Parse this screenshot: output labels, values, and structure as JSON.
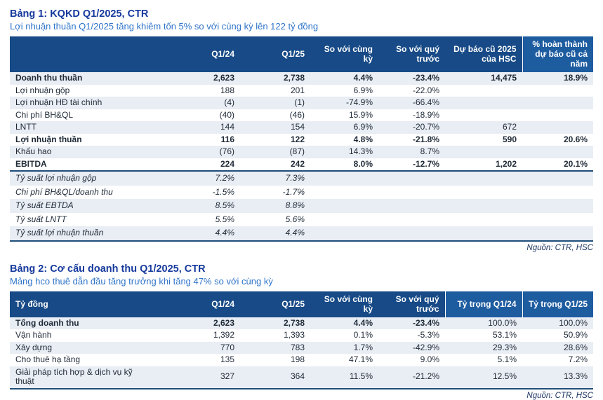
{
  "table1": {
    "title": "Bảng 1: KQKD Q1/2025, CTR",
    "subtitle": "Lợi nhuận thuần Q1/2025 tăng khiêm tốn 5% so với cùng kỳ lên 122 tỷ đồng",
    "source": "Nguồn: CTR, HSC",
    "columns": [
      "",
      "Q1/24",
      "Q1/25",
      "So với cùng kỳ",
      "So với quý trước",
      "Dự báo cũ 2025 của HSC",
      "% hoàn thành dự báo cũ cả năm"
    ],
    "highlight_columns": [
      6
    ],
    "rows": [
      {
        "label": "Doanh thu thuần",
        "values": [
          "2,623",
          "2,738",
          "4.4%",
          "-23.4%",
          "14,475",
          "18.9%"
        ],
        "bold": true
      },
      {
        "label": "Lợi nhuận gộp",
        "values": [
          "188",
          "201",
          "6.9%",
          "-22.0%",
          "",
          ""
        ]
      },
      {
        "label": "Lợi nhuận HĐ tài chính",
        "values": [
          "(4)",
          "(1)",
          "-74.9%",
          "-66.4%",
          "",
          ""
        ]
      },
      {
        "label": "Chi phí BH&QL",
        "values": [
          "(40)",
          "(46)",
          "15.9%",
          "-18.9%",
          "",
          ""
        ]
      },
      {
        "label": "LNTT",
        "values": [
          "144",
          "154",
          "6.9%",
          "-20.7%",
          "672",
          ""
        ]
      },
      {
        "label": "Lợi nhuận thuần",
        "values": [
          "116",
          "122",
          "4.8%",
          "-21.8%",
          "590",
          "20.6%"
        ],
        "bold": true
      },
      {
        "label": "Khấu hao",
        "values": [
          "(76)",
          "(87)",
          "14.3%",
          "8.7%",
          "",
          ""
        ]
      },
      {
        "label": "EBITDA",
        "values": [
          "224",
          "242",
          "8.0%",
          "-12.7%",
          "1,202",
          "20.1%"
        ],
        "bold": true
      }
    ],
    "ratio_rows": [
      {
        "label": "Tỷ suất lợi nhuận gộp",
        "values": [
          "7.2%",
          "7.3%",
          "",
          "",
          "",
          ""
        ]
      },
      {
        "label": "Chi phí BH&QL/doanh thu",
        "values": [
          "-1.5%",
          "-1.7%",
          "",
          "",
          "",
          ""
        ]
      },
      {
        "label": "Tỷ suất EBTDA",
        "values": [
          "8.5%",
          "8.8%",
          "",
          "",
          "",
          ""
        ]
      },
      {
        "label": "Tỷ suất LNTT",
        "values": [
          "5.5%",
          "5.6%",
          "",
          "",
          "",
          ""
        ]
      },
      {
        "label": "Tỷ suất lợi nhuận thuần",
        "values": [
          "4.4%",
          "4.4%",
          "",
          "",
          "",
          ""
        ]
      }
    ]
  },
  "table2": {
    "title": "Bảng 2: Cơ cấu doanh thu Q1/2025, CTR",
    "subtitle": "Mảng hco thuê dẫn đầu tăng trưởng khi tăng 47% so với cùng kỳ",
    "source": "Nguồn: CTR, HSC",
    "columns": [
      "Tỷ đồng",
      "Q1/24",
      "Q1/25",
      "So với cùng kỳ",
      "So với quý trước",
      "Tỷ trọng Q1/24",
      "Tỷ trọng Q1/25"
    ],
    "highlight_columns": [
      5,
      6
    ],
    "rows": [
      {
        "label": "Tổng doanh thu",
        "values": [
          "2,623",
          "2,738",
          "4.4%",
          "-23.4%",
          "100.0%",
          "100.0%"
        ],
        "bold": true,
        "bold_values_until": 4
      },
      {
        "label": "Vận hành",
        "values": [
          "1,392",
          "1,393",
          "0.1%",
          "-5.3%",
          "53.1%",
          "50.9%"
        ]
      },
      {
        "label": "Xây dựng",
        "values": [
          "770",
          "783",
          "1.7%",
          "-42.9%",
          "29.3%",
          "28.6%"
        ]
      },
      {
        "label": "Cho thuê hạ tầng",
        "values": [
          "135",
          "198",
          "47.1%",
          "9.0%",
          "5.1%",
          "7.2%"
        ]
      },
      {
        "label": "Giải pháp tích hợp & dịch vụ kỹ thuật",
        "values": [
          "327",
          "364",
          "11.5%",
          "-21.2%",
          "12.5%",
          "13.3%"
        ]
      }
    ]
  },
  "colors": {
    "header_navy": "#174a86",
    "header_highlight": "#1e5ca0",
    "row_stripe": "#e9edf4",
    "rule_navy": "#1f4e79",
    "title_blue": "#16399d",
    "subtitle_blue": "#2e74c9"
  }
}
